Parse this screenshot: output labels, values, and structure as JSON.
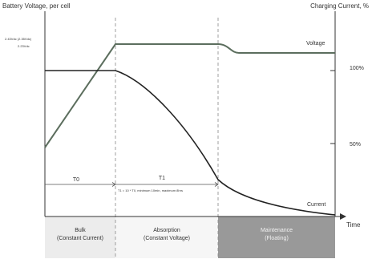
{
  "title_left": "Battery Voltage, per cell",
  "title_right": "Charging Current, %",
  "voltage_levels": {
    "v_high": "2.43Vdc (2.35Vdc)",
    "v_float": "2.23Vdc"
  },
  "right_ticks": [
    "100%",
    "50%"
  ],
  "curve_labels": {
    "voltage": "Voltage",
    "current": "Current"
  },
  "x_axis_label": "Time",
  "intervals": {
    "t0": "T0",
    "t1": "T1",
    "t1_note": "T1 = 10 * T0, minimum 10min, maximum 8hrs"
  },
  "stages": [
    {
      "name": "Bulk",
      "mode": "(Constant Current)",
      "color": "#ececec"
    },
    {
      "name": "Absorption",
      "mode": "(Constant Voltage)",
      "color": "#f6f6f6"
    },
    {
      "name": "Maintenance",
      "mode": "(Floating)",
      "color": "#999999"
    }
  ],
  "colors": {
    "voltage_curve": "#5c6e5e",
    "current_curve": "#222222",
    "axis": "#333333"
  }
}
